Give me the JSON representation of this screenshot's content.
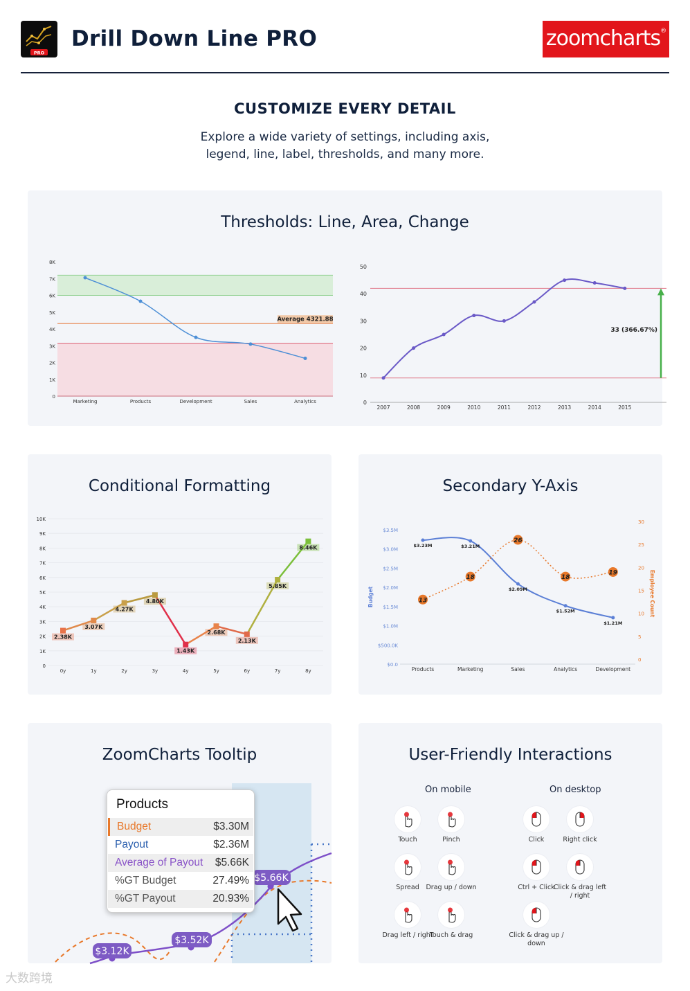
{
  "header": {
    "app_badge": "PRO",
    "app_title": "Drill Down Line PRO",
    "brand": "zoomcharts",
    "brand_mark": "®",
    "brand_color": "#e2151b"
  },
  "intro": {
    "title": "CUSTOMIZE EVERY DETAIL",
    "line1": "Explore a wide variety of settings, including axis,",
    "line2": "legend, line, label, thresholds, and many more."
  },
  "panels": {
    "thresholds": "Thresholds: Line, Area, Change",
    "conditional": "Conditional Formatting",
    "secondary": "Secondary Y-Axis",
    "tooltip": "ZoomCharts Tooltip",
    "interactions": "User-Friendly Interactions"
  },
  "chart_data": [
    {
      "type": "line",
      "categories": [
        "Marketing",
        "Products",
        "Development",
        "Sales",
        "Analytics"
      ],
      "values": [
        7050,
        5650,
        3500,
        3100,
        2250
      ],
      "yticks": [
        "0",
        "1K",
        "2K",
        "3K",
        "4K",
        "5K",
        "6K",
        "7K",
        "8K"
      ],
      "ylim": [
        0,
        8000
      ],
      "bands": [
        {
          "from": 6000,
          "to": 7200,
          "color": "#d9eed9"
        },
        {
          "from": 0,
          "to": 3150,
          "color": "#f6dde3"
        }
      ],
      "threshold_line": {
        "value": 4321.88,
        "label": "Average 4321.88",
        "color": "#e8834a"
      },
      "band_lines": [
        {
          "value": 3150,
          "color": "#e0788a"
        }
      ],
      "color": "#4d8fd6"
    },
    {
      "type": "line",
      "categories": [
        "2007",
        "2008",
        "2009",
        "2010",
        "2011",
        "2012",
        "2013",
        "2014",
        "2015"
      ],
      "values": [
        9,
        20,
        25,
        32,
        30,
        37,
        45,
        44,
        42
      ],
      "yticks": [
        "0",
        "10",
        "20",
        "30",
        "40",
        "50"
      ],
      "ylim": [
        0,
        50
      ],
      "threshold_lines": [
        9,
        42
      ],
      "change_label": "33 (366.67%)",
      "color": "#6a59c7",
      "arrow_color": "#48b04a"
    },
    {
      "type": "line",
      "categories": [
        "0y",
        "1y",
        "2y",
        "3y",
        "4y",
        "5y",
        "6y",
        "7y",
        "8y"
      ],
      "values": [
        2380,
        3070,
        4270,
        4800,
        1430,
        2680,
        2130,
        5850,
        8460
      ],
      "labels": [
        "2.38K",
        "3.07K",
        "4.27K",
        "4.80K",
        "1.43K",
        "2.68K",
        "2.13K",
        "5.85K",
        "8.46K"
      ],
      "colors": [
        "#e8734a",
        "#e0894a",
        "#c9a04a",
        "#b99a3f",
        "#e0304a",
        "#e8834a",
        "#e06a4a",
        "#b0b040",
        "#7bbf3a"
      ],
      "yticks": [
        "0",
        "1K",
        "2K",
        "3K",
        "4K",
        "5K",
        "6K",
        "7K",
        "8K",
        "9K",
        "10K"
      ],
      "ylim": [
        0,
        10000
      ]
    },
    {
      "type": "line",
      "categories": [
        "Products",
        "Marketing",
        "Sales",
        "Analytics",
        "Development"
      ],
      "series": [
        {
          "values": [
            3.23,
            3.21,
            2.09,
            1.52,
            1.21
          ],
          "labels": [
            "$3.23M",
            "$3.21M",
            "$2.09M",
            "$1.52M",
            "$1.21M"
          ],
          "color": "#5b7fd6"
        },
        {
          "values": [
            13,
            18,
            26,
            18,
            19
          ],
          "labels": [
            "13",
            "18",
            "26",
            "18",
            "19"
          ],
          "color": "#e8782a"
        }
      ],
      "ylabel": "Budget",
      "y2label": "Employee Count",
      "yticks": [
        "$0.0",
        "$500.0K",
        "$1.0M",
        "$1.5M",
        "$2.0M",
        "$2.5M",
        "$3.0M",
        "$3.5M"
      ],
      "y2ticks": [
        "0",
        "5",
        "10",
        "15",
        "20",
        "25",
        "30"
      ],
      "ylim": [
        0,
        3.5
      ],
      "y2lim": [
        0,
        30
      ]
    }
  ],
  "tooltip": {
    "title": "Products",
    "rows": [
      {
        "label": "Budget",
        "value": "$3.30M",
        "color": "#e8782a"
      },
      {
        "label": "Payout",
        "value": "$2.36M",
        "color": "#2b5fae"
      },
      {
        "label": "Average of Payout",
        "value": "$5.66K",
        "color": "#8a55c8"
      },
      {
        "label": "%GT Budget",
        "value": "27.49%",
        "color": "#555555"
      },
      {
        "label": "%GT Payout",
        "value": "20.93%",
        "color": "#555555"
      }
    ],
    "bubbles": [
      "$5.66K",
      "$3.52K",
      "$3.12K"
    ]
  },
  "interactions": {
    "mobile_head": "On mobile",
    "desktop_head": "On desktop",
    "mobile": [
      "Touch",
      "Pinch",
      "Spread",
      "Drag up / down",
      "Drag left / right",
      "Touch & drag"
    ],
    "desktop": [
      "Click",
      "Right click",
      "Ctrl + Click",
      "Click & drag left / right",
      "Click & drag up / down"
    ],
    "mobile_icons": [
      "touch-icon",
      "pinch-icon",
      "spread-icon",
      "drag-vertical-icon",
      "drag-horizontal-icon",
      "touch-drag-icon"
    ],
    "desktop_icons": [
      "click-icon",
      "right-click-icon",
      "ctrl-click-icon",
      "click-drag-horizontal-icon",
      "click-drag-vertical-icon"
    ]
  },
  "watermark": "大数跨境"
}
